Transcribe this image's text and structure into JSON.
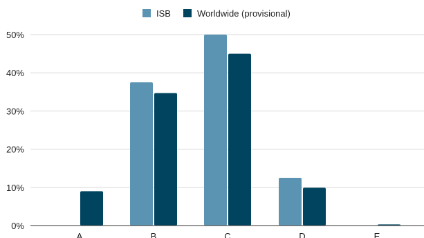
{
  "chart_data": {
    "type": "bar",
    "categories": [
      "A",
      "B",
      "C",
      "D",
      "E"
    ],
    "series": [
      {
        "name": "ISB",
        "color": "#5b93b2",
        "values": [
          0,
          37.5,
          50,
          12.5,
          0
        ]
      },
      {
        "name": "Worldwide (provisional)",
        "color": "#00445f",
        "values": [
          9,
          34.7,
          45,
          9.9,
          0.3
        ]
      }
    ],
    "yticks": [
      0,
      10,
      20,
      30,
      40,
      50
    ],
    "ytick_labels": [
      "0%",
      "10%",
      "20%",
      "30%",
      "40%",
      "50%"
    ],
    "ylim": [
      0,
      50
    ],
    "grid": true,
    "legend_position": "top-center"
  }
}
